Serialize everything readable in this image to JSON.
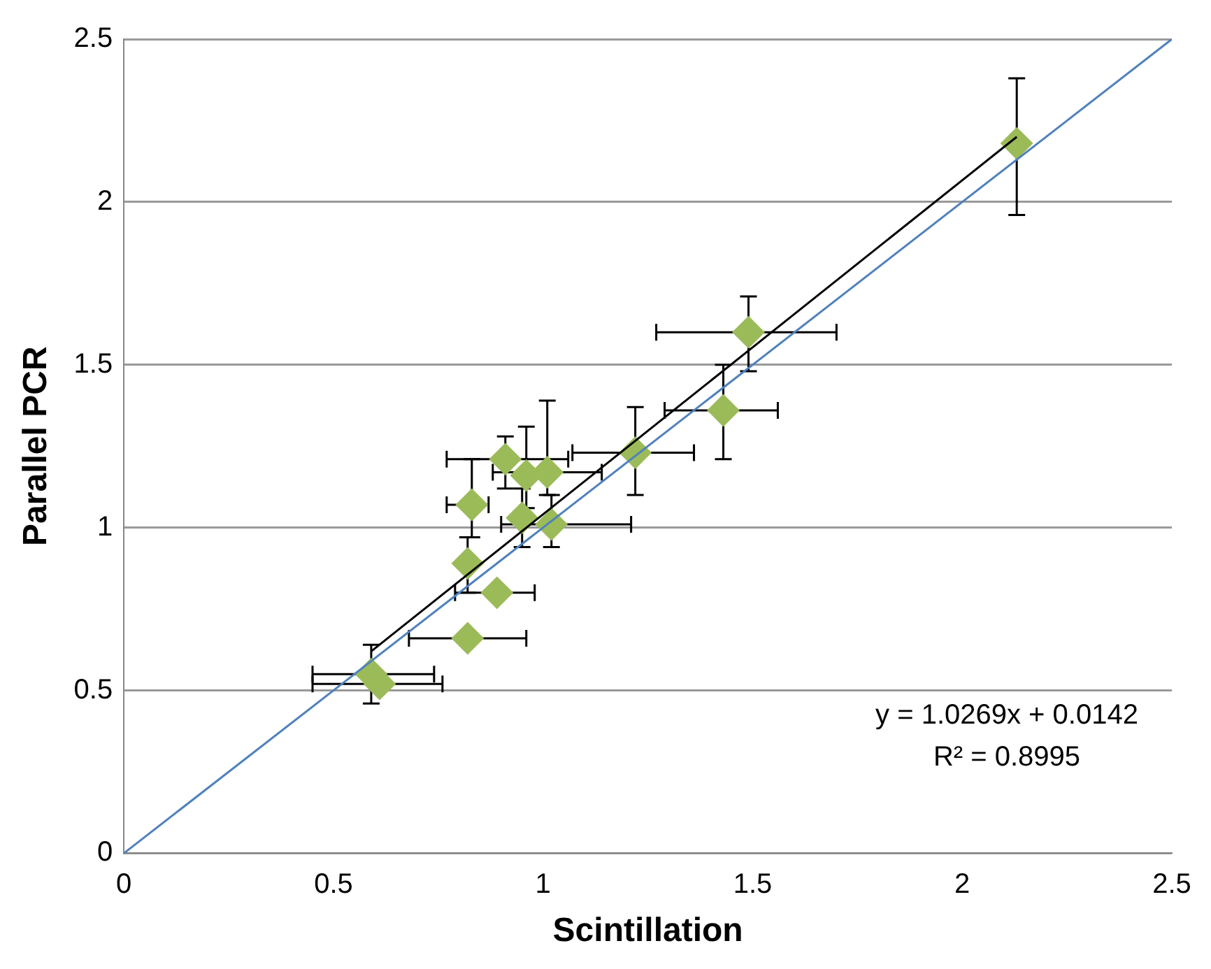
{
  "chart_data": {
    "type": "scatter",
    "xlabel": "Scintillation",
    "ylabel": "Parallel PCR",
    "xlim": [
      0,
      2.5
    ],
    "ylim": [
      0,
      2.5
    ],
    "xticks": [
      0,
      0.5,
      1,
      1.5,
      2,
      2.5
    ],
    "yticks": [
      0,
      0.5,
      1,
      1.5,
      2,
      2.5
    ],
    "grid": "y",
    "legend": false,
    "marker": "diamond",
    "annotations": [
      "y = 1.0269x + 0.0142",
      "R² = 0.8995"
    ],
    "series": [
      {
        "color": "#9bbb59",
        "x": [
          0.59,
          0.61,
          0.82,
          0.89,
          0.82,
          0.83,
          0.95,
          1.02,
          0.91,
          0.96,
          1.01,
          1.22,
          1.43,
          1.49,
          2.13
        ],
        "values": [
          0.55,
          0.52,
          0.66,
          0.8,
          0.89,
          1.07,
          1.03,
          1.01,
          1.21,
          1.16,
          1.17,
          1.23,
          1.36,
          1.6,
          2.18
        ],
        "errors": [
          [
            0.46,
            0.64
          ],
          null,
          null,
          null,
          [
            0.8,
            0.97
          ],
          [
            0.97,
            1.21
          ],
          [
            0.94,
            1.12
          ],
          [
            0.94,
            1.1
          ],
          [
            1.12,
            1.28
          ],
          [
            1.06,
            1.31
          ],
          [
            1.1,
            1.39
          ],
          [
            1.1,
            1.37
          ],
          [
            1.21,
            1.5
          ],
          [
            1.48,
            1.71
          ],
          [
            1.96,
            2.38
          ]
        ],
        "xerrors": [
          [
            0.45,
            0.74
          ],
          [
            0.45,
            0.76
          ],
          [
            0.68,
            0.96
          ],
          [
            0.79,
            0.98
          ],
          null,
          [
            0.77,
            0.87
          ],
          null,
          [
            0.9,
            1.21
          ],
          [
            0.77,
            1.06
          ],
          null,
          [
            0.88,
            1.14
          ],
          [
            1.07,
            1.36
          ],
          [
            1.29,
            1.56
          ],
          [
            1.27,
            1.7
          ],
          null
        ]
      },
      {
        "type": "line",
        "color": "#000000",
        "marker": "none",
        "x": [
          0.59,
          2.13
        ],
        "values": [
          0.62,
          2.2
        ]
      },
      {
        "type": "line",
        "color": "#4f81bd",
        "marker": "none",
        "x": [
          0,
          2.5
        ],
        "values": [
          0,
          2.5
        ]
      }
    ]
  }
}
